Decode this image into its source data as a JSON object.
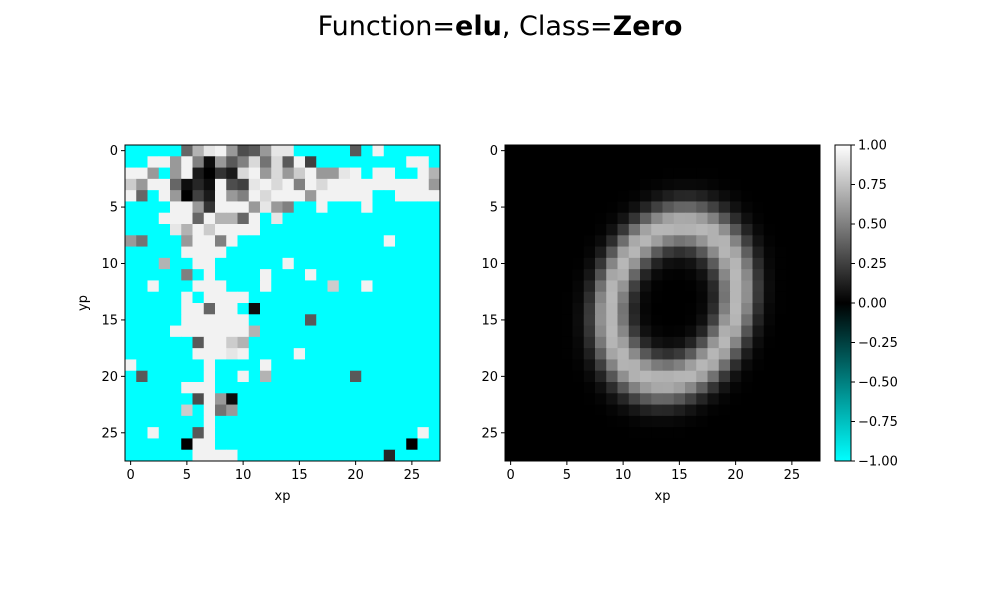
{
  "figure": {
    "title_prefix": "Function=",
    "function_name": "elu",
    "title_mid": ", Class=",
    "class_name": "Zero"
  },
  "chart_data": [
    {
      "type": "heatmap",
      "xlabel": "xp",
      "ylabel": "yp",
      "grid_size": 28,
      "xticks": [
        0,
        5,
        10,
        15,
        20,
        25
      ],
      "yticks": [
        0,
        5,
        10,
        15,
        20,
        25
      ],
      "colormap": "cyan-black-white",
      "value_range": [
        -1,
        1
      ],
      "background_value": -1.0,
      "cells": [
        [
          0,
          5,
          0.4
        ],
        [
          0,
          6,
          0.7
        ],
        [
          0,
          7,
          0.9
        ],
        [
          0,
          8,
          0.95
        ],
        [
          0,
          9,
          0.6
        ],
        [
          0,
          10,
          0.3
        ],
        [
          0,
          11,
          0.35
        ],
        [
          0,
          12,
          0.6
        ],
        [
          0,
          13,
          0.9
        ],
        [
          0,
          14,
          0.9
        ],
        [
          0,
          20,
          0.35
        ],
        [
          0,
          22,
          0.95
        ],
        [
          1,
          2,
          0.95
        ],
        [
          1,
          3,
          0.95
        ],
        [
          1,
          4,
          0.6
        ],
        [
          1,
          5,
          0.95
        ],
        [
          1,
          6,
          0.5
        ],
        [
          1,
          7,
          0.05
        ],
        [
          1,
          8,
          0.6
        ],
        [
          1,
          9,
          0.35
        ],
        [
          1,
          10,
          0.5
        ],
        [
          1,
          11,
          0.85
        ],
        [
          1,
          12,
          0.45
        ],
        [
          1,
          13,
          0.85
        ],
        [
          1,
          14,
          0.35
        ],
        [
          1,
          15,
          0.95
        ],
        [
          1,
          16,
          0.25
        ],
        [
          1,
          25,
          0.95
        ],
        [
          1,
          26,
          0.95
        ],
        [
          2,
          0,
          0.95
        ],
        [
          2,
          1,
          0.95
        ],
        [
          2,
          2,
          0.6
        ],
        [
          2,
          4,
          0.6
        ],
        [
          2,
          5,
          0.95
        ],
        [
          2,
          6,
          0.1
        ],
        [
          2,
          7,
          0.0
        ],
        [
          2,
          8,
          0.2
        ],
        [
          2,
          9,
          0.1
        ],
        [
          2,
          10,
          0.85
        ],
        [
          2,
          11,
          0.95
        ],
        [
          2,
          12,
          0.6
        ],
        [
          2,
          13,
          0.85
        ],
        [
          2,
          14,
          0.6
        ],
        [
          2,
          15,
          0.8
        ],
        [
          2,
          16,
          0.95
        ],
        [
          2,
          17,
          0.6
        ],
        [
          2,
          18,
          0.6
        ],
        [
          2,
          19,
          0.9
        ],
        [
          2,
          20,
          0.95
        ],
        [
          2,
          22,
          0.95
        ],
        [
          2,
          23,
          0.95
        ],
        [
          2,
          26,
          0.95
        ],
        [
          2,
          27,
          0.7
        ],
        [
          3,
          0,
          0.8
        ],
        [
          3,
          1,
          0.6
        ],
        [
          3,
          2,
          0.95
        ],
        [
          3,
          3,
          0.95
        ],
        [
          3,
          4,
          0.4
        ],
        [
          3,
          5,
          0.05
        ],
        [
          3,
          6,
          0.15
        ],
        [
          3,
          7,
          0.05
        ],
        [
          3,
          8,
          0.95
        ],
        [
          3,
          9,
          0.3
        ],
        [
          3,
          10,
          0.25
        ],
        [
          3,
          11,
          0.9
        ],
        [
          3,
          12,
          0.95
        ],
        [
          3,
          13,
          0.85
        ],
        [
          3,
          14,
          0.95
        ],
        [
          3,
          15,
          0.5
        ],
        [
          3,
          16,
          0.95
        ],
        [
          3,
          17,
          0.85
        ],
        [
          3,
          18,
          0.95
        ],
        [
          3,
          19,
          0.95
        ],
        [
          3,
          20,
          0.95
        ],
        [
          3,
          21,
          0.95
        ],
        [
          3,
          22,
          0.95
        ],
        [
          3,
          23,
          0.95
        ],
        [
          3,
          24,
          0.95
        ],
        [
          3,
          25,
          0.95
        ],
        [
          3,
          26,
          0.95
        ],
        [
          3,
          27,
          0.6
        ],
        [
          4,
          0,
          0.95
        ],
        [
          4,
          1,
          0.4
        ],
        [
          4,
          3,
          0.95
        ],
        [
          4,
          4,
          0.6
        ],
        [
          4,
          5,
          0.0
        ],
        [
          4,
          6,
          0.25
        ],
        [
          4,
          7,
          0.1
        ],
        [
          4,
          8,
          0.95
        ],
        [
          4,
          9,
          0.6
        ],
        [
          4,
          10,
          0.5
        ],
        [
          4,
          11,
          0.95
        ],
        [
          4,
          12,
          0.85
        ],
        [
          4,
          13,
          0.95
        ],
        [
          4,
          14,
          0.95
        ],
        [
          4,
          15,
          0.95
        ],
        [
          4,
          16,
          0.6
        ],
        [
          4,
          17,
          0.95
        ],
        [
          4,
          18,
          0.95
        ],
        [
          4,
          19,
          0.95
        ],
        [
          4,
          20,
          0.95
        ],
        [
          4,
          21,
          0.95
        ],
        [
          4,
          24,
          0.95
        ],
        [
          4,
          25,
          0.95
        ],
        [
          4,
          26,
          0.95
        ],
        [
          4,
          27,
          0.95
        ],
        [
          5,
          4,
          0.95
        ],
        [
          5,
          5,
          0.95
        ],
        [
          5,
          6,
          0.6
        ],
        [
          5,
          7,
          0.2
        ],
        [
          5,
          8,
          0.95
        ],
        [
          5,
          9,
          0.95
        ],
        [
          5,
          10,
          0.95
        ],
        [
          5,
          11,
          0.6
        ],
        [
          5,
          12,
          0.9
        ],
        [
          5,
          13,
          0.6
        ],
        [
          5,
          14,
          0.5
        ],
        [
          5,
          17,
          0.95
        ],
        [
          5,
          21,
          0.95
        ],
        [
          6,
          3,
          0.95
        ],
        [
          6,
          4,
          0.95
        ],
        [
          6,
          5,
          0.95
        ],
        [
          6,
          6,
          0.4
        ],
        [
          6,
          7,
          0.95
        ],
        [
          6,
          8,
          0.7
        ],
        [
          6,
          9,
          0.7
        ],
        [
          6,
          10,
          0.4
        ],
        [
          6,
          11,
          0.95
        ],
        [
          6,
          13,
          0.9
        ],
        [
          7,
          4,
          0.9
        ],
        [
          7,
          5,
          0.7
        ],
        [
          7,
          6,
          0.95
        ],
        [
          7,
          7,
          0.8
        ],
        [
          7,
          8,
          0.95
        ],
        [
          7,
          9,
          0.95
        ],
        [
          7,
          10,
          0.95
        ],
        [
          7,
          11,
          0.95
        ],
        [
          8,
          0,
          0.6
        ],
        [
          8,
          1,
          0.45
        ],
        [
          8,
          5,
          0.6
        ],
        [
          8,
          6,
          0.95
        ],
        [
          8,
          7,
          0.95
        ],
        [
          8,
          8,
          0.5
        ],
        [
          8,
          9,
          0.95
        ],
        [
          8,
          23,
          0.95
        ],
        [
          9,
          5,
          0.95
        ],
        [
          9,
          6,
          0.95
        ],
        [
          9,
          7,
          0.95
        ],
        [
          9,
          8,
          0.95
        ],
        [
          10,
          3,
          0.7
        ],
        [
          10,
          6,
          0.95
        ],
        [
          10,
          7,
          0.95
        ],
        [
          10,
          14,
          0.95
        ],
        [
          11,
          5,
          0.5
        ],
        [
          11,
          7,
          0.95
        ],
        [
          11,
          12,
          0.95
        ],
        [
          11,
          16,
          0.95
        ],
        [
          12,
          2,
          0.95
        ],
        [
          12,
          6,
          0.95
        ],
        [
          12,
          7,
          0.95
        ],
        [
          12,
          8,
          0.95
        ],
        [
          12,
          12,
          0.95
        ],
        [
          12,
          18,
          0.8
        ],
        [
          12,
          21,
          0.95
        ],
        [
          13,
          5,
          0.95
        ],
        [
          13,
          7,
          0.95
        ],
        [
          13,
          8,
          0.95
        ],
        [
          13,
          9,
          0.95
        ],
        [
          13,
          10,
          0.95
        ],
        [
          14,
          5,
          0.95
        ],
        [
          14,
          6,
          0.95
        ],
        [
          14,
          7,
          0.4
        ],
        [
          14,
          8,
          0.95
        ],
        [
          14,
          9,
          0.95
        ],
        [
          14,
          11,
          0.05
        ],
        [
          15,
          5,
          0.95
        ],
        [
          15,
          6,
          0.95
        ],
        [
          15,
          7,
          0.95
        ],
        [
          15,
          8,
          0.95
        ],
        [
          15,
          9,
          0.95
        ],
        [
          15,
          10,
          0.95
        ],
        [
          15,
          16,
          0.35
        ],
        [
          16,
          4,
          0.95
        ],
        [
          16,
          5,
          0.95
        ],
        [
          16,
          6,
          0.95
        ],
        [
          16,
          7,
          0.95
        ],
        [
          16,
          8,
          0.95
        ],
        [
          16,
          9,
          0.95
        ],
        [
          16,
          10,
          0.95
        ],
        [
          16,
          11,
          0.7
        ],
        [
          17,
          6,
          0.35
        ],
        [
          17,
          7,
          0.95
        ],
        [
          17,
          8,
          0.95
        ],
        [
          17,
          9,
          0.8
        ],
        [
          17,
          10,
          0.7
        ],
        [
          18,
          6,
          0.95
        ],
        [
          18,
          7,
          0.95
        ],
        [
          18,
          8,
          0.95
        ],
        [
          18,
          9,
          0.9
        ],
        [
          18,
          10,
          0.95
        ],
        [
          18,
          15,
          0.95
        ],
        [
          19,
          0,
          0.95
        ],
        [
          19,
          7,
          0.95
        ],
        [
          19,
          12,
          0.95
        ],
        [
          20,
          1,
          0.35
        ],
        [
          20,
          7,
          0.95
        ],
        [
          20,
          10,
          0.95
        ],
        [
          20,
          12,
          0.7
        ],
        [
          20,
          20,
          0.35
        ],
        [
          21,
          5,
          0.95
        ],
        [
          21,
          6,
          0.95
        ],
        [
          21,
          7,
          0.95
        ],
        [
          22,
          6,
          0.3
        ],
        [
          22,
          7,
          0.95
        ],
        [
          22,
          8,
          0.6
        ],
        [
          22,
          9,
          0.05
        ],
        [
          23,
          5,
          0.8
        ],
        [
          23,
          7,
          0.95
        ],
        [
          23,
          8,
          0.45
        ],
        [
          23,
          9,
          0.6
        ],
        [
          24,
          7,
          0.95
        ],
        [
          25,
          2,
          0.95
        ],
        [
          25,
          6,
          0.35
        ],
        [
          25,
          7,
          0.95
        ],
        [
          25,
          26,
          0.95
        ],
        [
          26,
          5,
          0.0
        ],
        [
          26,
          6,
          0.95
        ],
        [
          26,
          7,
          0.95
        ],
        [
          26,
          25,
          0.0
        ],
        [
          27,
          6,
          0.95
        ],
        [
          27,
          7,
          0.95
        ],
        [
          27,
          8,
          0.95
        ],
        [
          27,
          9,
          0.95
        ],
        [
          27,
          23,
          0.15
        ]
      ]
    },
    {
      "type": "heatmap",
      "xlabel": "xp",
      "ylabel": "",
      "grid_size": 28,
      "xticks": [
        0,
        5,
        10,
        15,
        20,
        25
      ],
      "yticks": [
        0,
        5,
        10,
        15,
        20,
        25
      ],
      "colormap": "cyan-black-white",
      "value_range": [
        -1,
        1
      ],
      "background_value": 0.0,
      "shape": "ring (digit zero)",
      "ring_center": [
        13.5,
        14.5
      ],
      "ring_radii": [
        5.5,
        8.6
      ],
      "ring_tilt_deg": 18,
      "peak_value": 0.72
    }
  ],
  "colorbar": {
    "ticks": [
      "1.00",
      "0.75",
      "0.50",
      "0.25",
      "0.00",
      "−0.25",
      "−0.50",
      "−0.75",
      "−1.00"
    ],
    "range": [
      -1,
      1
    ]
  }
}
